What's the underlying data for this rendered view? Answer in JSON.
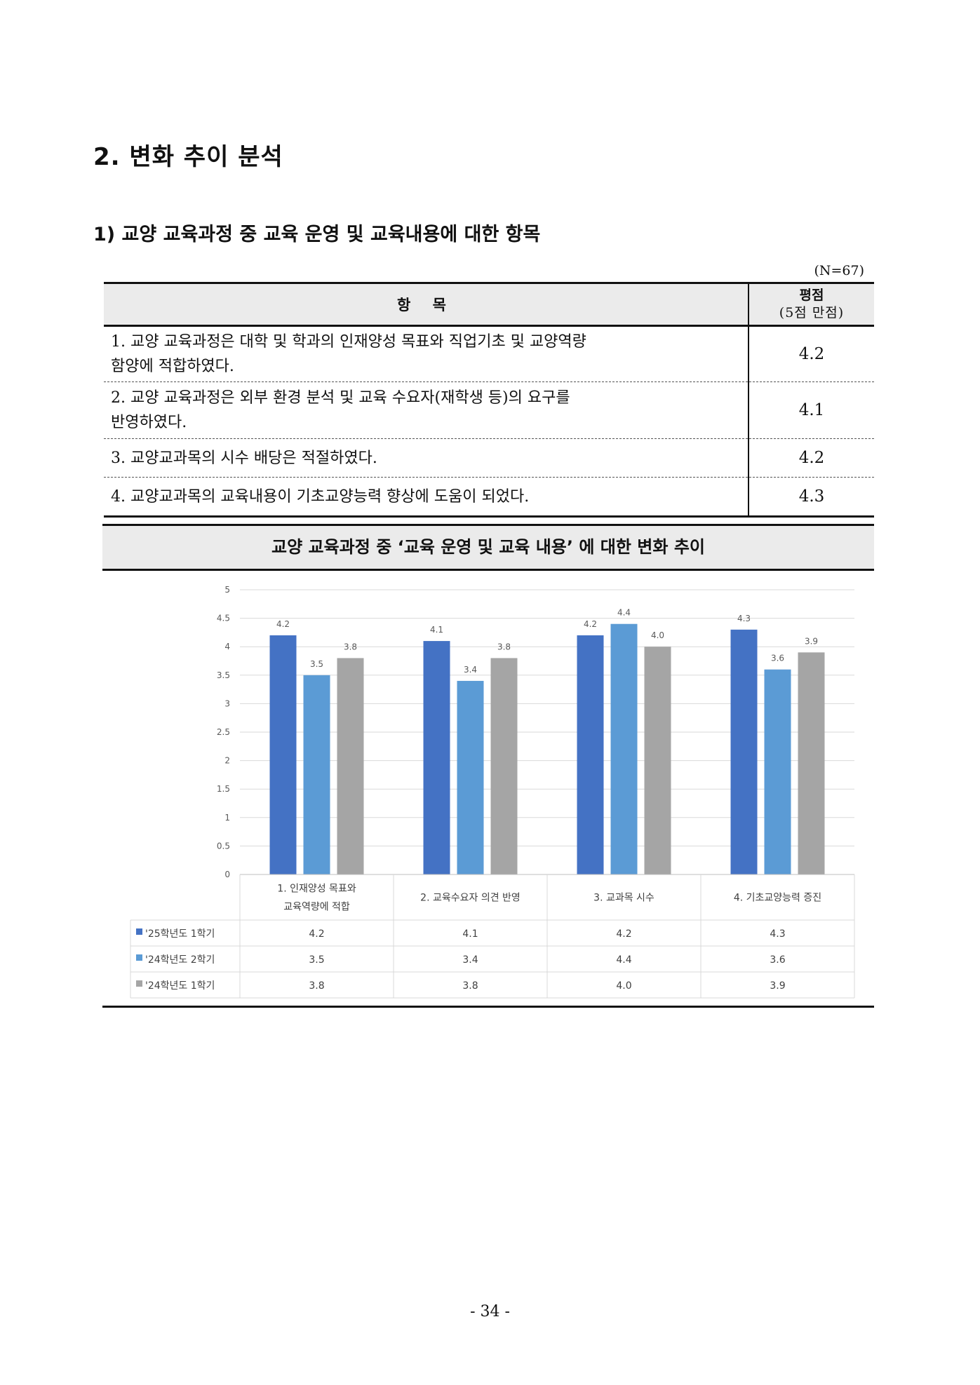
{
  "section_title": "2. 변화 추이 분석",
  "subsection_title": "1) 교양 교육과정 중 교육 운영 및 교육내용에 대한 항목",
  "n_label": "(N=67)",
  "table": {
    "header_item": "항 목",
    "header_score": "평점",
    "header_score_sub": "(5점 만점)",
    "rows": [
      {
        "num": "1.",
        "line1": "교양 교육과정은 대학 및 학과의 인재양성 목표와 직업기초 및 교양역량",
        "line2": "함양에 적합하였다.",
        "score": "4.2"
      },
      {
        "num": "2.",
        "line1": "교양 교육과정은 외부 환경 분석 및 교육 수요자(재학생 등)의 요구를",
        "line2": "반영하였다.",
        "score": "4.1"
      },
      {
        "num": "3.",
        "line1": "교양교과목의 시수 배당은 적절하였다.",
        "line2": "",
        "score": "4.2"
      },
      {
        "num": "4.",
        "line1": "교양교과목의 교육내용이 기초교양능력 향상에 도움이 되었다.",
        "line2": "",
        "score": "4.3"
      }
    ]
  },
  "chart_title": "교양 교육과정 중 ‘교육 운영 및 교육 내용’ 에 대한 변화 추이",
  "chart_data": {
    "type": "bar",
    "categories": [
      [
        "1. 인재양성 목표와",
        "교육역량에 적합"
      ],
      [
        "2. 교육수요자 의견 반영"
      ],
      [
        "3. 교과목 시수"
      ],
      [
        "4. 기초교양능력 증진"
      ]
    ],
    "series": [
      {
        "name": "'25학년도 1학기",
        "values": [
          4.2,
          4.1,
          4.2,
          4.3
        ],
        "labels": [
          "4.2",
          "4.1",
          "4.2",
          "4.3"
        ],
        "color": "#4472c4"
      },
      {
        "name": "'24학년도 2학기",
        "values": [
          3.5,
          3.4,
          4.4,
          3.6
        ],
        "labels": [
          "3.5",
          "3.4",
          "4.4",
          "3.6"
        ],
        "color": "#5b9bd5"
      },
      {
        "name": "'24학년도 1학기",
        "values": [
          3.8,
          3.8,
          4.0,
          3.9
        ],
        "labels": [
          "3.8",
          "3.8",
          "4.0",
          "3.9"
        ],
        "color": "#a5a5a5"
      }
    ],
    "yticks": [
      "0",
      "0.5",
      "1",
      "1.5",
      "2",
      "2.5",
      "3",
      "3.5",
      "4",
      "4.5",
      "5"
    ],
    "ylim": [
      0,
      5
    ],
    "grid": true,
    "legend": "data-table-left"
  },
  "page_number": "- 34 -"
}
